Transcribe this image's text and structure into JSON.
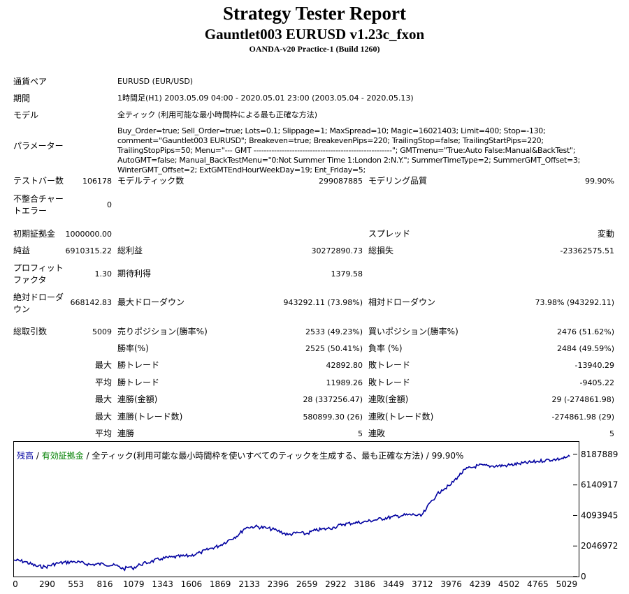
{
  "header": {
    "title": "Strategy Tester Report",
    "subtitle": "Gauntlet003 EURUSD v1.23c_fxon",
    "server": "OANDA-v20 Practice-1 (Build 1260)"
  },
  "info": {
    "symbol_label": "通貨ペア",
    "symbol_value": "EURUSD (EUR/USD)",
    "period_label": "期間",
    "period_value": "1時間足(H1) 2003.05.09 04:00 - 2020.05.01 23:00 (2003.05.04 - 2020.05.13)",
    "model_label": "モデル",
    "model_value": "全ティック (利用可能な最小時間枠による最も正確な方法)",
    "params_label": "パラメーター",
    "params_value": "Buy_Order=true; Sell_Order=true; Lots=0.1; Slippage=1; MaxSpread=10; Magic=16021403; Limit=400; Stop=-130; comment=\"Gauntlet003 EURUSD\"; Breakeven=true; BreakevenPips=220; TrailingStop=false; TrailingStartPips=220; TrailingStopPips=50; Menu=\"--- GMT ------------------------------------------------------\"; GMTmenu=\"True:Auto False:Manual&BackTest\"; AutoGMT=false; Manual_BackTestMenu=\"0:Not Summer Time 1:London 2:N.Y.\"; SummerTimeType=2; SummerGMT_Offset=3; WinterGMT_Offset=2; ExtGMTEndHourWeekDay=19; Ent_Friday=5;"
  },
  "stats": {
    "bars_label": "テストバー数",
    "bars_value": "106178",
    "ticks_label": "モデルティック数",
    "ticks_value": "299087885",
    "quality_label": "モデリング品質",
    "quality_value": "99.90%",
    "mismatch_label": "不整合チャートエラー",
    "mismatch_value": "0",
    "deposit_label": "初期証拠金",
    "deposit_value": "1000000.00",
    "spread_label": "スプレッド",
    "spread_value": "変動",
    "net_label": "純益",
    "net_value": "6910315.22",
    "gross_profit_label": "総利益",
    "gross_profit_value": "30272890.73",
    "gross_loss_label": "総損失",
    "gross_loss_value": "-23362575.51",
    "pf_label": "プロフィットファクタ",
    "pf_value": "1.30",
    "expected_label": "期待利得",
    "expected_value": "1379.58",
    "abs_dd_label": "絶対ドローダウン",
    "abs_dd_value": "668142.83",
    "max_dd_label": "最大ドローダウン",
    "max_dd_value": "943292.11 (73.98%)",
    "rel_dd_label": "相対ドローダウン",
    "rel_dd_value": "73.98% (943292.11)",
    "total_label": "総取引数",
    "total_value": "5009",
    "short_label": "売りポジション(勝率%)",
    "short_value": "2533 (49.23%)",
    "long_label": "買いポジション(勝率%)",
    "long_value": "2476 (51.62%)",
    "winrate_label": "勝率(%)",
    "winrate_value": "2525 (50.41%)",
    "lossrate_label": "負率 (%)",
    "lossrate_value": "2484 (49.59%)",
    "max_prefix": "最大",
    "avg_prefix": "平均",
    "largest_win_label": "勝トレード",
    "largest_win_value": "42892.80",
    "largest_loss_label": "敗トレード",
    "largest_loss_value": "-13940.29",
    "avg_win_label": "勝トレード",
    "avg_win_value": "11989.26",
    "avg_loss_label": "敗トレード",
    "avg_loss_value": "-9405.22",
    "max_cons_wins_label": "連勝(金額)",
    "max_cons_wins_value": "28 (337256.47)",
    "max_cons_losses_label": "連敗(金額)",
    "max_cons_losses_value": "29 (-274861.98)",
    "max_cons_profit_label": "連勝(トレード数)",
    "max_cons_profit_value": "580899.30 (26)",
    "max_cons_loss_label": "連敗(トレード数)",
    "max_cons_loss_value": "-274861.98 (29)",
    "avg_cons_wins_label": "連勝",
    "avg_cons_wins_value": "5",
    "avg_cons_losses_label": "連敗",
    "avg_cons_losses_value": "5"
  },
  "legend": {
    "balance": "残高",
    "sep1": " / ",
    "equity": "有効証拠金",
    "sep2": " / ",
    "rest": "全ティック(利用可能な最小時間枠を使いすべてのティックを生成する、最も正確な方法) / 99.90%"
  },
  "colors": {
    "balance": "#0000a0",
    "equity": "#008000"
  },
  "chart_data": {
    "type": "line",
    "title": "",
    "xlabel": "",
    "ylabel": "",
    "xlim": [
      0,
      5100
    ],
    "ylim": [
      0,
      8700000
    ],
    "x_ticks": [
      0,
      290,
      553,
      816,
      1079,
      1343,
      1606,
      1869,
      2133,
      2396,
      2659,
      2922,
      3186,
      3449,
      3712,
      3976,
      4239,
      4502,
      4765,
      5029
    ],
    "y_ticks": [
      0,
      2046972,
      4093945,
      6140917,
      8187889
    ],
    "series": [
      {
        "name": "残高",
        "color": "#0000a0",
        "x": [
          0,
          100,
          200,
          290,
          400,
          553,
          700,
          816,
          950,
          1000,
          1050,
          1079,
          1150,
          1250,
          1343,
          1450,
          1606,
          1700,
          1800,
          1869,
          1950,
          2050,
          2100,
          2133,
          2200,
          2300,
          2396,
          2500,
          2600,
          2659,
          2750,
          2850,
          2922,
          3000,
          3100,
          3186,
          3300,
          3449,
          3550,
          3650,
          3712,
          3760,
          3800,
          3850,
          3900,
          3976,
          4050,
          4120,
          4200,
          4239,
          4350,
          4502,
          4600,
          4765,
          4850,
          4950,
          5029,
          5070
        ],
        "y": [
          1100000,
          1000000,
          700000,
          650000,
          900000,
          1000000,
          800000,
          850000,
          700000,
          500000,
          650000,
          550000,
          800000,
          1000000,
          1200000,
          1300000,
          1400000,
          1600000,
          1900000,
          2050000,
          2400000,
          2800000,
          3200000,
          3300000,
          3350000,
          3250000,
          3100000,
          2800000,
          2950000,
          2850000,
          3100000,
          3200000,
          3300000,
          3500000,
          3600000,
          3650000,
          3800000,
          4000000,
          4100000,
          4150000,
          4050000,
          4500000,
          5000000,
          5400000,
          5800000,
          6100000,
          6700000,
          7200000,
          7350000,
          7450000,
          7400000,
          7450000,
          7550000,
          7700000,
          7800000,
          7850000,
          7950000,
          8050000
        ]
      }
    ]
  }
}
